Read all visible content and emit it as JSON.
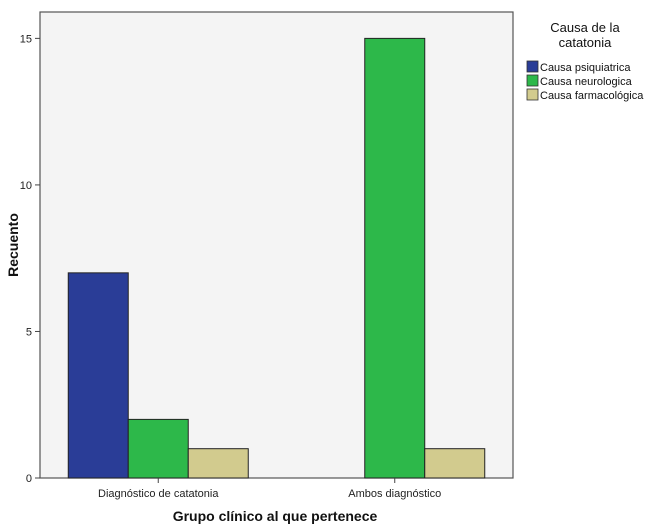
{
  "chart_data": {
    "type": "bar",
    "title": "",
    "xlabel": "Grupo clínico al que pertenece",
    "ylabel": "Recuento",
    "categories": [
      "Diagnóstico de catatonia",
      "Ambos diagnóstico"
    ],
    "series": [
      {
        "name": "Causa psiquiatrica",
        "color": "#2a3d97",
        "values": [
          7,
          0
        ]
      },
      {
        "name": "Causa neurologica",
        "color": "#2db84a",
        "values": [
          2,
          15
        ]
      },
      {
        "name": "Causa farmacológica",
        "color": "#d2cb8e",
        "values": [
          1,
          1
        ]
      }
    ],
    "yticks": [
      0,
      5,
      10,
      15
    ],
    "ylim": [
      0,
      15.9
    ],
    "grid": false,
    "legend": {
      "title_line1": "Causa de la",
      "title_line2": "catatonia",
      "position": "top-right"
    }
  }
}
